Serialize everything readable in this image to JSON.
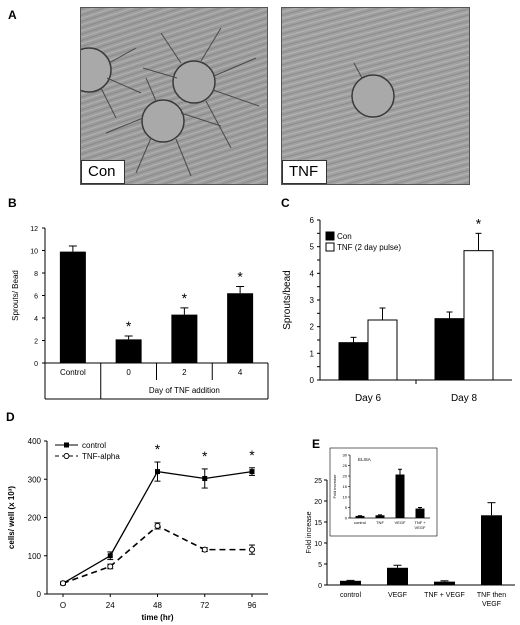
{
  "panels": [
    "A",
    "B",
    "C",
    "D",
    "E"
  ],
  "micrographs": [
    {
      "label": "Con"
    },
    {
      "label": "TNF"
    }
  ],
  "chart_data": [
    {
      "id": "B",
      "type": "bar",
      "title": "",
      "ylabel": "Sprouts/ Bead",
      "xlabel": "Day of TNF addition",
      "ylim": [
        0,
        12
      ],
      "yticks": [
        0,
        2,
        4,
        6,
        8,
        10,
        12
      ],
      "categories": [
        "Control",
        "0",
        "2",
        "4"
      ],
      "values": [
        9.9,
        2.1,
        4.3,
        6.2
      ],
      "errors": [
        0.5,
        0.3,
        0.6,
        0.6
      ],
      "significant": [
        false,
        true,
        true,
        true
      ],
      "sig_mark": "*",
      "bar_color": "#000000"
    },
    {
      "id": "C",
      "type": "bar",
      "title": "",
      "ylabel": "Sprouts/bead",
      "xlabel": "",
      "ylim": [
        0,
        6
      ],
      "yticks": [
        0,
        0.5,
        1,
        1.5,
        2,
        2.5,
        3,
        3.5,
        4,
        4.5,
        5,
        5.5,
        6
      ],
      "categories": [
        "Day 6",
        "Day 8"
      ],
      "series": [
        {
          "name": "Con",
          "values": [
            1.4,
            2.3
          ],
          "errors": [
            0.2,
            0.25
          ],
          "color": "#000000"
        },
        {
          "name": "TNF (2 day pulse)",
          "values": [
            2.25,
            4.85
          ],
          "errors": [
            0.45,
            0.65
          ],
          "color": "#ffffff"
        }
      ],
      "significant_category": "Day 8",
      "sig_mark": "*",
      "legend": "top-left"
    },
    {
      "id": "D",
      "type": "line",
      "title": "",
      "ylabel": "cells/ well (x 10³)",
      "xlabel": "time (hr)",
      "x": [
        0,
        24,
        48,
        72,
        96
      ],
      "xticklabels": [
        "O",
        "24",
        "48",
        "72",
        "96"
      ],
      "ylim": [
        0,
        400
      ],
      "yticks": [
        0,
        100,
        200,
        300,
        400
      ],
      "series": [
        {
          "name": "control",
          "values": [
            28,
            100,
            320,
            302,
            320
          ],
          "errors": [
            3,
            10,
            25,
            25,
            10
          ],
          "marker": "filled-square",
          "line": "solid"
        },
        {
          "name": "TNF-alpha",
          "values": [
            28,
            72,
            178,
            116,
            116
          ],
          "errors": [
            3,
            6,
            8,
            5,
            12
          ],
          "marker": "open-circle",
          "line": "dashed"
        }
      ],
      "significant_x": [
        48,
        72,
        96
      ],
      "sig_mark": "*",
      "legend": "top-left"
    },
    {
      "id": "E",
      "type": "bar",
      "title": "",
      "ylabel": "Fold increase",
      "xlabel": "",
      "ylim": [
        0,
        25
      ],
      "yticks": [
        0,
        5,
        10,
        15,
        20,
        25
      ],
      "categories": [
        "control",
        "VEGF",
        "TNF + VEGF",
        "TNF then VEGF"
      ],
      "values": [
        1.0,
        4.1,
        0.8,
        16.6
      ],
      "errors": [
        0.1,
        0.6,
        0.2,
        3.0
      ],
      "bar_color": "#000000",
      "inset": {
        "title": "ELISA",
        "ylabel": "Fold increase",
        "ylim": [
          0,
          30
        ],
        "yticks": [
          0,
          5,
          10,
          15,
          20,
          25,
          30
        ],
        "categories": [
          "control",
          "TNF",
          "VEGF",
          "TNF + VEGF"
        ],
        "values": [
          1.0,
          1.3,
          20.7,
          4.5
        ],
        "errors": [
          0.1,
          0.2,
          2.5,
          0.5
        ]
      }
    }
  ]
}
